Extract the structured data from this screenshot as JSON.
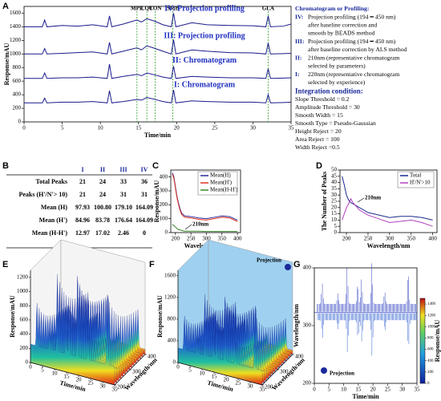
{
  "chart_data": [
    {
      "type": "line",
      "panel": "A",
      "xlabel": "Time/min",
      "ylabel": "Response/mAU",
      "xlim": [
        0,
        35
      ],
      "xticks": [
        0,
        5,
        10,
        15,
        20,
        25,
        30,
        35
      ],
      "ylim": [
        0,
        1700
      ],
      "yticks": [
        0,
        200,
        400,
        600,
        800,
        1000,
        1200,
        1400,
        1600
      ],
      "x": [
        0,
        2.4,
        2.7,
        3.0,
        5,
        7,
        9,
        10.9,
        11.2,
        11.5,
        13,
        14.8,
        15.4,
        16.1,
        17.2,
        18.2,
        19.3,
        19.6,
        19.9,
        22,
        24,
        27,
        30,
        31.7,
        32,
        32.3,
        34,
        35
      ],
      "series": [
        {
          "name": "IV: Projection profiling",
          "color": "#1a1a8c",
          "values": [
            1400,
            1400,
            1500,
            1400,
            1420,
            1410,
            1430,
            1400,
            1560,
            1400,
            1440,
            1500,
            1470,
            1520,
            1480,
            1430,
            1400,
            1600,
            1400,
            1460,
            1430,
            1420,
            1415,
            1400,
            1560,
            1400,
            1410,
            1440
          ]
        },
        {
          "name": "III: Projection profiling",
          "color": "#1a1a8c",
          "values": [
            1000,
            1000,
            1080,
            1000,
            1010,
            1020,
            1030,
            1000,
            1170,
            1000,
            1040,
            1090,
            1060,
            1120,
            1080,
            1040,
            1000,
            1210,
            1000,
            1060,
            1040,
            1020,
            1015,
            1000,
            1160,
            1000,
            1005,
            1010
          ]
        },
        {
          "name": "II: Chromatogram",
          "color": "#1a1a8c",
          "values": [
            640,
            640,
            720,
            640,
            650,
            650,
            660,
            640,
            850,
            640,
            670,
            700,
            680,
            720,
            690,
            660,
            640,
            820,
            640,
            670,
            660,
            650,
            650,
            640,
            780,
            640,
            645,
            650
          ]
        },
        {
          "name": "I: Chromatogram",
          "color": "#1a1a8c",
          "values": [
            280,
            280,
            350,
            280,
            290,
            290,
            300,
            280,
            460,
            280,
            300,
            330,
            320,
            360,
            330,
            300,
            280,
            470,
            280,
            310,
            300,
            290,
            290,
            280,
            400,
            280,
            285,
            290
          ]
        }
      ],
      "markers": [
        {
          "label": "MPE",
          "x": 14.8
        },
        {
          "label": "LQT",
          "x": 16.1
        },
        {
          "label": "CON",
          "x": 17.2
        },
        {
          "label": "SMB",
          "x": 19.5
        },
        {
          "label": "GLA",
          "x": 32
        }
      ],
      "notes": {
        "heading": "Chromatogram or Profiling:",
        "items": [
          {
            "key": "IV:",
            "lines": [
              "Projection profiling (194 ━ 450 nm)",
              "after baseline correction and",
              "smooth by BEADS method"
            ]
          },
          {
            "key": "III:",
            "lines": [
              "Projection profiling (194 ━ 450 nm)",
              "after baseline correction by ALS method"
            ]
          },
          {
            "key": "II:",
            "lines": [
              "210nm (representative chromatogram",
              "selected by parameters)"
            ]
          },
          {
            "key": "I:",
            "lines": [
              "220nm (representative chromatogram",
              "selected by experience)"
            ]
          }
        ],
        "condition_heading": "Integration condition:",
        "conditions": [
          "Slope Threshold = 0.2",
          "Amplitude Threshold = 30",
          "Smooth Width = 15",
          "Smooth Type = Pseudo-Gaussian",
          "Height Reject = 20",
          "Area Reject = 100",
          "Width Reject =0.5"
        ]
      }
    },
    {
      "type": "line",
      "panel": "C",
      "xlabel": "Wavelength/nm",
      "ylabel": "Response/mAU",
      "xlim": [
        185,
        410
      ],
      "xticks": [
        200,
        250,
        300,
        350,
        400
      ],
      "ylim": [
        0,
        450
      ],
      "yticks": [
        0,
        100,
        200,
        300,
        400
      ],
      "legend": "upper right",
      "annotation": "210nm",
      "x": [
        190,
        195,
        200,
        205,
        210,
        215,
        220,
        230,
        250,
        275,
        300,
        325,
        350,
        375,
        400
      ],
      "series": [
        {
          "name": "Mean(H)",
          "color": "#2a2a9a",
          "values": [
            430,
            400,
            330,
            260,
            210,
            170,
            140,
            120,
            115,
            105,
            100,
            110,
            120,
            115,
            90
          ]
        },
        {
          "name": "Mean(H')",
          "color": "#e03020",
          "values": [
            420,
            390,
            320,
            250,
            200,
            160,
            130,
            110,
            105,
            95,
            90,
            100,
            110,
            105,
            80
          ]
        },
        {
          "name": "Mean(H-H')",
          "color": "#3a8a2a",
          "values": [
            60,
            50,
            40,
            30,
            20,
            20,
            15,
            10,
            10,
            10,
            8,
            8,
            8,
            8,
            8
          ]
        }
      ]
    },
    {
      "type": "line",
      "panel": "D",
      "xlabel": "Wavelength/nm",
      "ylabel": "The Number of Peaks",
      "xlim": [
        185,
        410
      ],
      "xticks": [
        200,
        250,
        300,
        350,
        400
      ],
      "ylim": [
        0,
        50
      ],
      "yticks": [
        0,
        5,
        10,
        15,
        20,
        25,
        30,
        35,
        40,
        45,
        50
      ],
      "legend": "upper right",
      "annotation": "210nm",
      "x": [
        190,
        195,
        200,
        205,
        210,
        215,
        220,
        230,
        250,
        275,
        300,
        325,
        350,
        375,
        400
      ],
      "series": [
        {
          "name": "Total",
          "color": "#1a2a8c",
          "values": [
            45,
            38,
            30,
            26,
            24,
            23,
            22,
            20,
            16,
            14,
            12,
            13,
            13,
            12,
            10
          ]
        },
        {
          "name": "H'/N'>10",
          "color": "#b040c0",
          "values": [
            10,
            15,
            20,
            23,
            27,
            24,
            22,
            18,
            14,
            11,
            8,
            9,
            10,
            8,
            5
          ]
        }
      ]
    },
    {
      "type": "surface3d",
      "panel": "E",
      "xlabel": "Time/min",
      "ylabel": "Wavelength/nm",
      "zlabel": "Response/mAU",
      "xlim": [
        0,
        35
      ],
      "xticks": [
        0,
        5,
        10,
        15,
        20,
        25,
        30,
        35
      ],
      "ylim": [
        200,
        400
      ],
      "yticks": [
        200,
        300,
        400
      ],
      "zlim": [
        0,
        1300
      ],
      "zticks": [
        0,
        200,
        400,
        600,
        800,
        1000,
        1200
      ]
    },
    {
      "type": "surface3d",
      "panel": "F",
      "xlabel": "Time/min",
      "ylabel": "Wavelength/nm",
      "zlabel": "Response/mAU",
      "xlim": [
        0,
        35
      ],
      "xticks": [
        0,
        5,
        10,
        15,
        20,
        25,
        30,
        35
      ],
      "ylim": [
        200,
        400
      ],
      "yticks": [
        200,
        300,
        400
      ],
      "zlim": [
        0,
        1700
      ],
      "zticks": [
        0,
        400,
        800,
        1200,
        1600
      ],
      "annotation": "Projection"
    },
    {
      "type": "heatmap",
      "panel": "G",
      "xlabel": "Time/min",
      "ylabel": "Wavelength/nm",
      "colorbar_label": "Response/mAU",
      "xlim": [
        0,
        35
      ],
      "xticks": [
        0,
        5,
        10,
        15,
        20,
        25,
        30,
        35
      ],
      "ylim": [
        200,
        400
      ],
      "yticks": [
        200,
        300,
        400
      ],
      "clim": [
        0,
        1500
      ],
      "cticks": [
        0,
        200,
        400,
        600,
        800,
        1000,
        1200,
        1400
      ],
      "annotation": "Projection"
    }
  ],
  "table": {
    "panel": "B",
    "columns": [
      "I",
      "II",
      "III",
      "IV"
    ],
    "rows": [
      {
        "label": "Total Peaks",
        "cells": [
          "21",
          "24",
          "33",
          "36"
        ]
      },
      {
        "label": "Peaks (H'/N'> 10)",
        "cells": [
          "21",
          "24",
          "31",
          "31"
        ]
      },
      {
        "label": "Mean (H)",
        "cells": [
          "97.93",
          "100.80",
          "179.10",
          "164.09"
        ]
      },
      {
        "label": "Mean (H')",
        "cells": [
          "84.96",
          "83.78",
          "176.64",
          "164.09"
        ]
      },
      {
        "label": "Mean (H-H')",
        "cells": [
          "12.97",
          "17.02",
          "2.46",
          "0"
        ]
      }
    ]
  }
}
